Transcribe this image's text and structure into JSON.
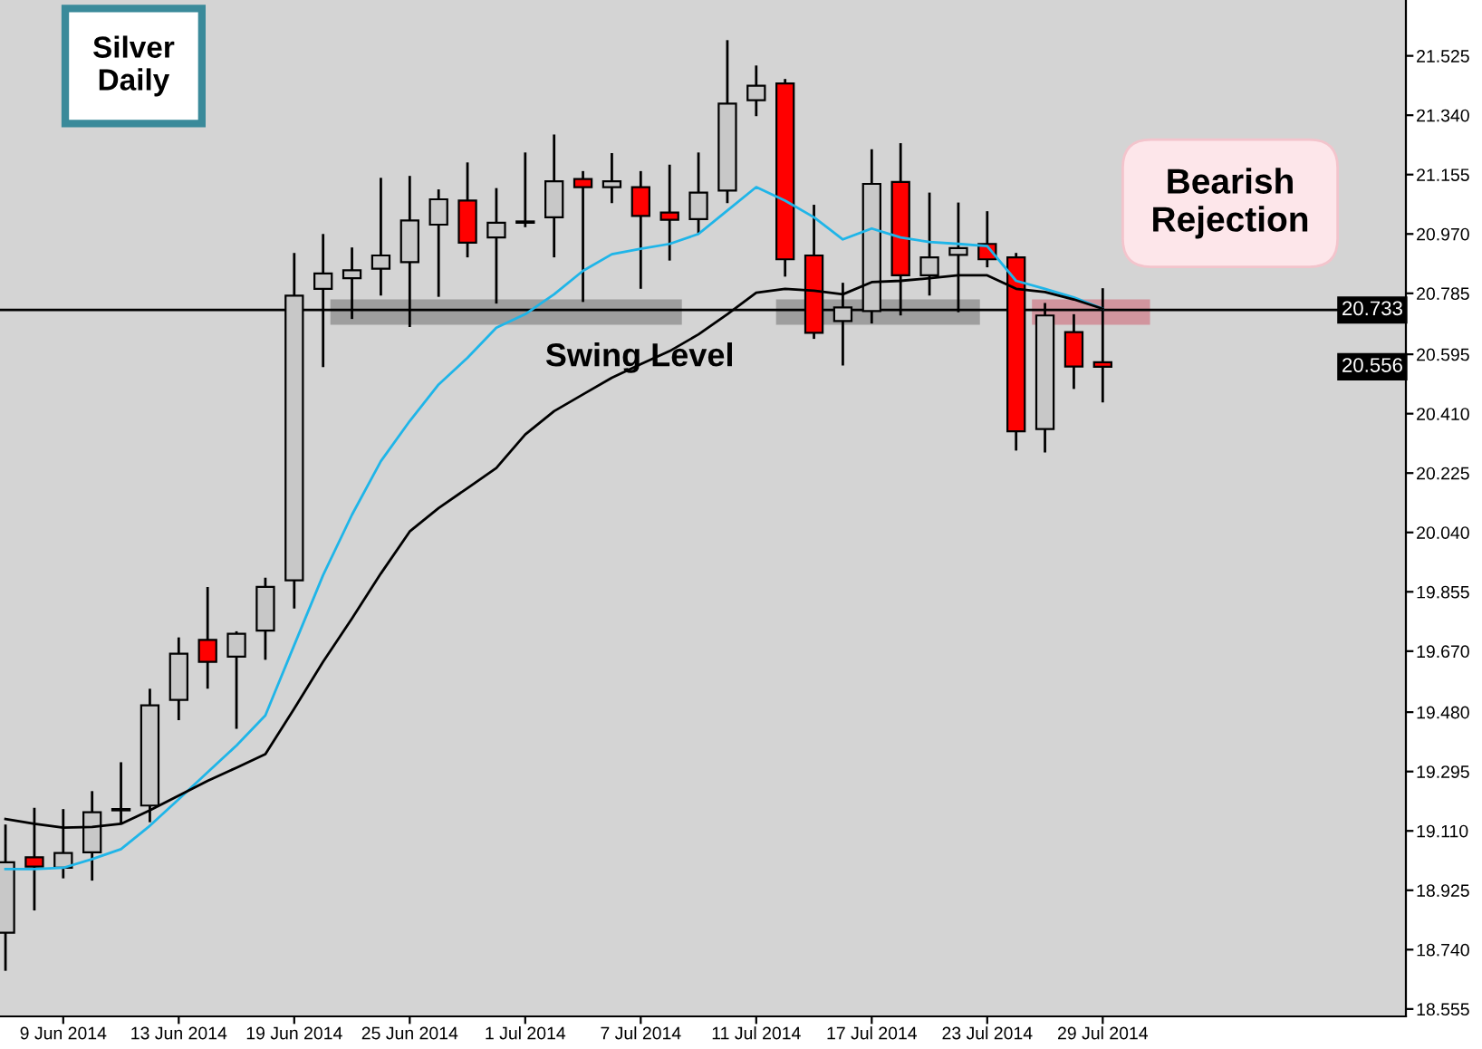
{
  "chart_data": {
    "type": "candlestick",
    "title": "Silver\nDaily",
    "categories": [
      null,
      null,
      "9 Jun 2014",
      null,
      null,
      null,
      "13 Jun 2014",
      null,
      null,
      null,
      "19 Jun 2014",
      null,
      null,
      null,
      "25 Jun 2014",
      null,
      null,
      null,
      "1 Jul 2014",
      null,
      null,
      null,
      "7 Jul 2014",
      null,
      null,
      null,
      "11 Jul 2014",
      null,
      null,
      null,
      "17 Jul 2014",
      null,
      null,
      null,
      "23 Jul 2014",
      null,
      null,
      null,
      "29 Jul 2014"
    ],
    "ohlc": [
      [
        18.793,
        19.126,
        18.678,
        19.012
      ],
      [
        19.028,
        19.178,
        18.866,
        18.999
      ],
      [
        18.995,
        19.174,
        18.966,
        19.041
      ],
      [
        19.043,
        19.23,
        18.959,
        19.168
      ],
      [
        19.174,
        19.32,
        19.137,
        19.178
      ],
      [
        19.189,
        19.549,
        19.141,
        19.501
      ],
      [
        19.518,
        19.709,
        19.459,
        19.662
      ],
      [
        19.705,
        19.866,
        19.557,
        19.637
      ],
      [
        19.653,
        19.728,
        19.432,
        19.724
      ],
      [
        19.734,
        19.895,
        19.647,
        19.87
      ],
      [
        19.891,
        20.907,
        19.807,
        20.778
      ],
      [
        20.799,
        20.966,
        20.559,
        20.847
      ],
      [
        20.832,
        20.924,
        20.709,
        20.857
      ],
      [
        20.862,
        21.141,
        20.782,
        20.903
      ],
      [
        20.882,
        21.147,
        20.684,
        21.012
      ],
      [
        20.999,
        21.105,
        20.778,
        21.078
      ],
      [
        21.074,
        21.189,
        20.901,
        20.943
      ],
      [
        20.959,
        21.109,
        20.757,
        21.005
      ],
      [
        21.005,
        21.22,
        20.995,
        21.009
      ],
      [
        21.022,
        21.276,
        20.901,
        21.134
      ],
      [
        21.141,
        21.162,
        20.762,
        21.116
      ],
      [
        21.116,
        21.218,
        21.07,
        21.134
      ],
      [
        21.116,
        21.162,
        20.803,
        21.026
      ],
      [
        21.037,
        21.182,
        20.891,
        21.014
      ],
      [
        21.016,
        21.22,
        20.976,
        21.099
      ],
      [
        21.105,
        21.57,
        21.07,
        21.376
      ],
      [
        21.387,
        21.491,
        21.341,
        21.432
      ],
      [
        21.439,
        21.449,
        20.841,
        20.891
      ],
      [
        20.903,
        21.057,
        20.647,
        20.662
      ],
      [
        20.699,
        20.814,
        20.564,
        20.741
      ],
      [
        20.73,
        21.23,
        20.695,
        21.126
      ],
      [
        21.132,
        21.249,
        20.72,
        20.841
      ],
      [
        20.841,
        21.095,
        20.782,
        20.897
      ],
      [
        20.905,
        21.064,
        20.73,
        20.926
      ],
      [
        20.939,
        21.037,
        20.87,
        20.891
      ],
      [
        20.897,
        20.907,
        20.299,
        20.355
      ],
      [
        20.362,
        20.751,
        20.293,
        20.716
      ],
      [
        20.664,
        20.716,
        20.491,
        20.557
      ],
      [
        20.57,
        20.797,
        20.449,
        20.556
      ]
    ],
    "colors": [
      "#c8c8c8",
      "#ff0000",
      "#c8c8c8",
      "#c8c8c8",
      "#c8c8c8",
      "#c8c8c8",
      "#c8c8c8",
      "#ff0000",
      "#c8c8c8",
      "#c8c8c8",
      "#c8c8c8",
      "#c8c8c8",
      "#c8c8c8",
      "#c8c8c8",
      "#c8c8c8",
      "#c8c8c8",
      "#ff0000",
      "#c8c8c8",
      "#c8c8c8",
      "#c8c8c8",
      "#ff0000",
      "#c8c8c8",
      "#ff0000",
      "#ff0000",
      "#c8c8c8",
      "#c8c8c8",
      "#c8c8c8",
      "#ff0000",
      "#ff0000",
      "#c8c8c8",
      "#c8c8c8",
      "#ff0000",
      "#c8c8c8",
      "#c8c8c8",
      "#ff0000",
      "#ff0000",
      "#c8c8c8",
      "#ff0000",
      "#ff0000"
    ],
    "series": [
      {
        "type": "line",
        "color": "#1fb5e8",
        "values": [
          18.991,
          18.991,
          18.995,
          19.022,
          19.053,
          19.126,
          19.209,
          19.293,
          19.376,
          19.47,
          19.689,
          19.907,
          20.095,
          20.262,
          20.387,
          20.501,
          20.584,
          20.678,
          20.72,
          20.782,
          20.855,
          20.907,
          20.924,
          20.939,
          20.97,
          21.043,
          21.116,
          21.074,
          21.022,
          20.953,
          20.987,
          20.959,
          20.945,
          20.939,
          20.932,
          20.824,
          20.799,
          20.772,
          20.737
        ]
      },
      {
        "type": "line",
        "color": "#000000",
        "values": [
          19.147,
          19.132,
          19.12,
          19.122,
          19.132,
          19.174,
          19.22,
          19.266,
          19.307,
          19.349,
          19.491,
          19.637,
          19.772,
          19.912,
          20.043,
          20.116,
          20.178,
          20.241,
          20.345,
          20.418,
          20.47,
          20.522,
          20.564,
          20.605,
          20.657,
          20.72,
          20.787,
          20.799,
          20.793,
          20.782,
          20.82,
          20.824,
          20.832,
          20.841,
          20.841,
          20.799,
          20.789,
          20.766,
          20.737
        ]
      }
    ],
    "ylim": [
      18.532,
      21.699
    ],
    "yticks": [
      {
        "value": 18.555,
        "label": "18.555"
      },
      {
        "value": 18.74,
        "label": "18.740"
      },
      {
        "value": 18.925,
        "label": "18.925"
      },
      {
        "value": 19.11,
        "label": "19.110"
      },
      {
        "value": 19.295,
        "label": "19.295"
      },
      {
        "value": 19.48,
        "label": "19.480"
      },
      {
        "value": 19.67,
        "label": "19.670"
      },
      {
        "value": 19.855,
        "label": "19.855"
      },
      {
        "value": 20.04,
        "label": "20.040"
      },
      {
        "value": 20.225,
        "label": "20.225"
      },
      {
        "value": 20.41,
        "label": "20.410"
      },
      {
        "value": 20.595,
        "label": "20.595"
      },
      {
        "value": 20.785,
        "label": "20.785"
      },
      {
        "value": 20.97,
        "label": "20.970"
      },
      {
        "value": 21.155,
        "label": "21.155"
      },
      {
        "value": 21.34,
        "label": "21.340"
      },
      {
        "value": 21.525,
        "label": "21.525"
      }
    ],
    "ref_lines": [
      {
        "axis": "y",
        "value": 20.733,
        "label": "20.733",
        "color": "#000000"
      }
    ],
    "annotations": [
      "Swing Level",
      "Bearish\nRejection",
      "20.556"
    ],
    "grid": false
  }
}
